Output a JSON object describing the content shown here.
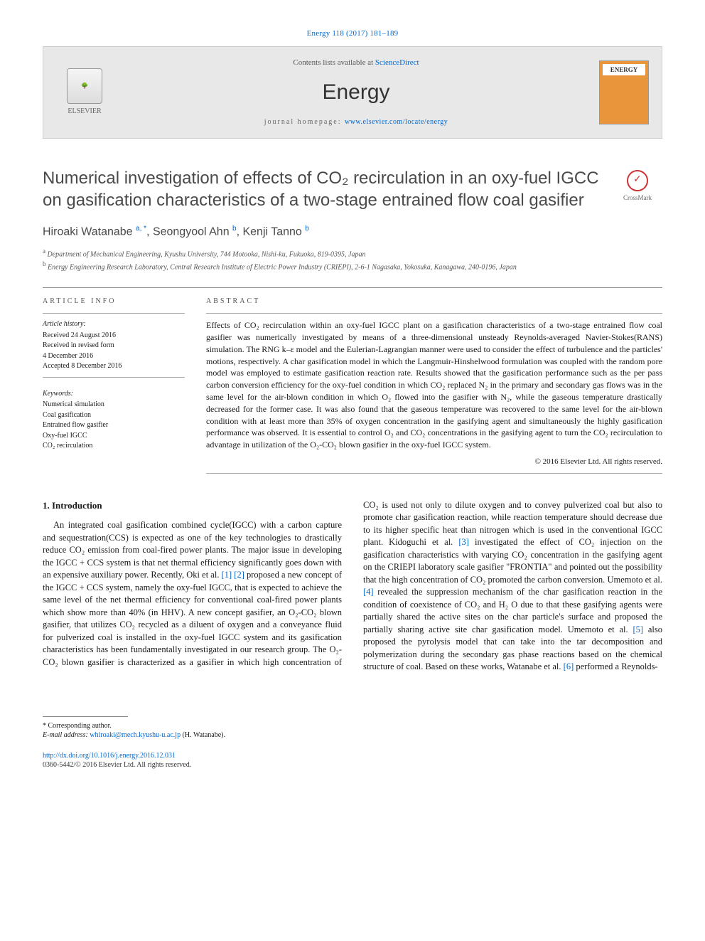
{
  "citation": "Energy 118 (2017) 181–189",
  "header": {
    "publisher": "ELSEVIER",
    "contents_prefix": "Contents lists available at ",
    "contents_link": "ScienceDirect",
    "journal": "Energy",
    "homepage_prefix": "journal homepage: ",
    "homepage_url": "www.elsevier.com/locate/energy",
    "cover_label": "ENERGY"
  },
  "crossmark": "CrossMark",
  "title": "Numerical investigation of effects of CO₂ recirculation in an oxy-fuel IGCC on gasification characteristics of a two-stage entrained flow coal gasifier",
  "authors_html": "Hiroaki Watanabe <sup>a, *</sup>, Seongyool Ahn <sup>b</sup>, Kenji Tanno <sup>b</sup>",
  "affiliations": {
    "a": "Department of Mechanical Engineering, Kyushu University, 744 Motooka, Nishi-ku, Fukuoka, 819-0395, Japan",
    "b": "Energy Engineering Research Laboratory, Central Research Institute of Electric Power Industry (CRIEPI), 2-6-1 Nagasaka, Yokosuka, Kanagawa, 240-0196, Japan"
  },
  "info": {
    "heading": "ARTICLE INFO",
    "history_label": "Article history:",
    "history": [
      "Received 24 August 2016",
      "Received in revised form",
      "4 December 2016",
      "Accepted 8 December 2016"
    ],
    "keywords_label": "Keywords:",
    "keywords": [
      "Numerical simulation",
      "Coal gasification",
      "Entrained flow gasifier",
      "Oxy-fuel IGCC",
      "CO₂ recirculation"
    ]
  },
  "abstract": {
    "heading": "ABSTRACT",
    "text": "Effects of CO₂ recirculation within an oxy-fuel IGCC plant on a gasification characteristics of a two-stage entrained flow coal gasifier was numerically investigated by means of a three-dimensional unsteady Reynolds-averaged Navier-Stokes(RANS) simulation. The RNG k–ε model and the Eulerian-Lagrangian manner were used to consider the effect of turbulence and the particles' motions, respectively. A char gasification model in which the Langmuir-Hinshelwood formulation was coupled with the random pore model was employed to estimate gasification reaction rate. Results showed that the gasification performance such as the per pass carbon conversion efficiency for the oxy-fuel condition in which CO₂ replaced N₂ in the primary and secondary gas flows was in the same level for the air-blown condition in which O₂ flowed into the gasifier with N₂, while the gaseous temperature drastically decreased for the former case. It was also found that the gaseous temperature was recovered to the same level for the air-blown condition with at least more than 35% of oxygen concentration in the gasifying agent and simultaneously the highly gasification performance was observed. It is essential to control O₂ and CO₂ concentrations in the gasifying agent to turn the CO₂ recirculation to advantage in utilization of the O₂-CO₂ blown gasifier in the oxy-fuel IGCC system.",
    "copyright": "© 2016 Elsevier Ltd. All rights reserved."
  },
  "section1": {
    "heading": "1. Introduction",
    "para1_a": "An integrated coal gasification combined cycle(IGCC) with a carbon capture and sequestration(CCS) is expected as one of the key technologies to drastically reduce CO₂ emission from coal-fired power plants. The major issue in developing the IGCC + CCS system is that net thermal efficiency significantly goes down with an expensive auxiliary power. Recently, Oki et al. ",
    "ref1": "[1]",
    "ref2": "[2]",
    "para1_b": " proposed a new concept of the IGCC + CCS system, namely the oxy-fuel IGCC, that is expected to achieve the same level of the net thermal efficiency for conventional coal-fired power plants which show more than 40% (in HHV). A new concept gasifier, an O₂-CO₂ blown gasifier, that utilizes CO₂ recycled as a diluent of oxygen and a conveyance fluid for pulverized coal is installed in the oxy-fuel IGCC system and its gasification characteristics has been fundamentally ",
    "para1_c": "investigated in our research group. The O₂-CO₂ blown gasifier is characterized as a gasifier in which high concentration of CO₂ is used not only to dilute oxygen and to convey pulverized coal but also to promote char gasification reaction, while reaction temperature should decrease due to its higher specific heat than nitrogen which is used in the conventional IGCC plant. Kidoguchi et al. ",
    "ref3": "[3]",
    "para1_d": " investigated the effect of CO₂ injection on the gasification characteristics with varying CO₂ concentration in the gasifying agent on the CRIEPI laboratory scale gasifier \"FRONTIA\" and pointed out the possibility that the high concentration of CO₂ promoted the carbon conversion. Umemoto et al. ",
    "ref4": "[4]",
    "para1_e": " revealed the suppression mechanism of the char gasification reaction in the condition of coexistence of CO₂ and H₂ O due to that these gasifying agents were partially shared the active sites on the char particle's surface and proposed the partially sharing active site char gasification model. Umemoto et al. ",
    "ref5": "[5]",
    "para1_f": " also proposed the pyrolysis model that can take into the tar decomposition and polymerization during the secondary gas phase reactions based on the chemical structure of coal. Based on these works, Watanabe et al. ",
    "ref6": "[6]",
    "para1_g": " performed a Reynolds-"
  },
  "footnotes": {
    "corr": "* Corresponding author.",
    "email_label": "E-mail address: ",
    "email": "whiroaki@mech.kyushu-u.ac.jp",
    "email_suffix": " (H. Watanabe)."
  },
  "doi": {
    "url": "http://dx.doi.org/10.1016/j.energy.2016.12.031",
    "issn": "0360-5442/© 2016 Elsevier Ltd. All rights reserved."
  },
  "colors": {
    "link": "#0066cc",
    "header_bg": "#e8e8e8",
    "cover_bg": "#e8953b",
    "text": "#1a1a1a",
    "heading_gray": "#4a4a4a"
  }
}
